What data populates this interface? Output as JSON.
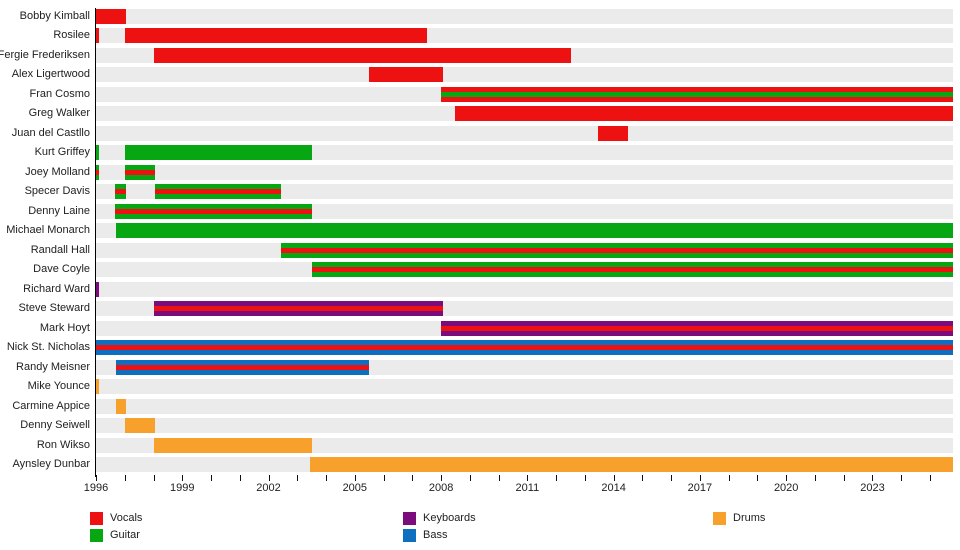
{
  "page": {
    "background": "#ffffff",
    "row_band_color": "#ebebeb",
    "axis_color": "#000000",
    "text_color": "#202122"
  },
  "legend": {
    "columns": [
      {
        "items": [
          {
            "label": "Vocals",
            "role": "vocals"
          },
          {
            "label": "Guitar",
            "role": "guitar"
          }
        ]
      },
      {
        "items": [
          {
            "label": "Keyboards",
            "role": "keyboards"
          },
          {
            "label": "Bass",
            "role": "bass"
          }
        ]
      },
      {
        "items": [
          {
            "label": "Drums",
            "role": "drums"
          }
        ]
      }
    ]
  },
  "chart_data": {
    "type": "timeline",
    "description": "Band member tenure timeline; bar color = instrument role, thin center stripe = secondary role (vocals/guitar).",
    "x_axis": {
      "min_year": 1996,
      "max_year": 2025.8,
      "minor_tick_every_years": 1,
      "major_tick_every_years": 3,
      "labels": [
        "1996",
        "1999",
        "2002",
        "2005",
        "2008",
        "2011",
        "2014",
        "2017",
        "2020",
        "2023"
      ],
      "label_years": [
        1996,
        1999,
        2002,
        2005,
        2008,
        2011,
        2014,
        2017,
        2020,
        2023
      ]
    },
    "roles": {
      "vocals": "#ee1111",
      "guitar": "#07a713",
      "keyboards": "#7b0c7b",
      "bass": "#0e6fc1",
      "drums": "#f7a02b"
    },
    "members": [
      {
        "name": "Bobby Kimball",
        "role": "vocals",
        "periods": [
          {
            "start": 1996.0,
            "end": 1997.05
          }
        ]
      },
      {
        "name": "Rosilee",
        "role": "vocals",
        "periods": [
          {
            "start": 1996.0,
            "end": 1996.1
          },
          {
            "start": 1997.0,
            "end": 2007.5
          }
        ]
      },
      {
        "name": "Fergie Frederiksen",
        "role": "vocals",
        "periods": [
          {
            "start": 1998.0,
            "end": 2012.5
          }
        ]
      },
      {
        "name": "Alex Ligertwood",
        "role": "vocals",
        "periods": [
          {
            "start": 2005.5,
            "end": 2008.05
          }
        ]
      },
      {
        "name": "Fran Cosmo",
        "role": "vocals",
        "stripe_role": "guitar",
        "periods": [
          {
            "start": 2008.0,
            "end": 2025.8
          }
        ]
      },
      {
        "name": "Greg Walker",
        "role": "vocals",
        "periods": [
          {
            "start": 2008.5,
            "end": 2025.8
          }
        ]
      },
      {
        "name": "Juan del Castllo",
        "role": "vocals",
        "periods": [
          {
            "start": 2013.45,
            "end": 2014.5
          }
        ]
      },
      {
        "name": "Kurt Griffey",
        "role": "guitar",
        "periods": [
          {
            "start": 1996.0,
            "end": 1996.1
          },
          {
            "start": 1997.0,
            "end": 2003.5
          }
        ]
      },
      {
        "name": "Joey Molland",
        "role": "guitar",
        "stripe_role": "vocals",
        "periods": [
          {
            "start": 1996.0,
            "end": 1996.1
          },
          {
            "start": 1997.0,
            "end": 1998.05
          }
        ]
      },
      {
        "name": "Specer Davis",
        "role": "guitar",
        "stripe_role": "vocals",
        "periods": [
          {
            "start": 1996.65,
            "end": 1997.05
          },
          {
            "start": 1998.05,
            "end": 2002.45
          }
        ]
      },
      {
        "name": "Denny Laine",
        "role": "guitar",
        "stripe_role": "vocals",
        "periods": [
          {
            "start": 1996.65,
            "end": 2003.5
          }
        ]
      },
      {
        "name": "Michael Monarch",
        "role": "guitar",
        "periods": [
          {
            "start": 1996.7,
            "end": 2025.8
          }
        ]
      },
      {
        "name": "Randall Hall",
        "role": "guitar",
        "stripe_role": "vocals",
        "periods": [
          {
            "start": 2002.45,
            "end": 2025.8
          }
        ]
      },
      {
        "name": "Dave Coyle",
        "role": "guitar",
        "stripe_role": "vocals",
        "periods": [
          {
            "start": 2003.5,
            "end": 2025.8
          }
        ]
      },
      {
        "name": "Richard Ward",
        "role": "keyboards",
        "periods": [
          {
            "start": 1996.0,
            "end": 1996.1
          }
        ]
      },
      {
        "name": "Steve Steward",
        "role": "keyboards",
        "stripe_role": "vocals",
        "periods": [
          {
            "start": 1998.0,
            "end": 2008.05
          }
        ]
      },
      {
        "name": "Mark Hoyt",
        "role": "keyboards",
        "stripe_role": "vocals",
        "periods": [
          {
            "start": 2008.0,
            "end": 2025.8
          }
        ]
      },
      {
        "name": "Nick St. Nicholas",
        "role": "bass",
        "stripe_role": "vocals",
        "periods": [
          {
            "start": 1996.0,
            "end": 2025.8
          }
        ]
      },
      {
        "name": "Randy Meisner",
        "role": "bass",
        "stripe_role": "vocals",
        "periods": [
          {
            "start": 1996.7,
            "end": 2005.5
          }
        ]
      },
      {
        "name": "Mike Younce",
        "role": "drums",
        "periods": [
          {
            "start": 1996.0,
            "end": 1996.1
          }
        ]
      },
      {
        "name": "Carmine Appice",
        "role": "drums",
        "periods": [
          {
            "start": 1996.7,
            "end": 1997.05
          }
        ]
      },
      {
        "name": "Denny Seiwell",
        "role": "drums",
        "periods": [
          {
            "start": 1997.0,
            "end": 1998.05
          }
        ]
      },
      {
        "name": "Ron Wikso",
        "role": "drums",
        "periods": [
          {
            "start": 1998.0,
            "end": 2003.5
          }
        ]
      },
      {
        "name": "Aynsley Dunbar",
        "role": "drums",
        "periods": [
          {
            "start": 2003.45,
            "end": 2025.8
          }
        ]
      }
    ]
  }
}
